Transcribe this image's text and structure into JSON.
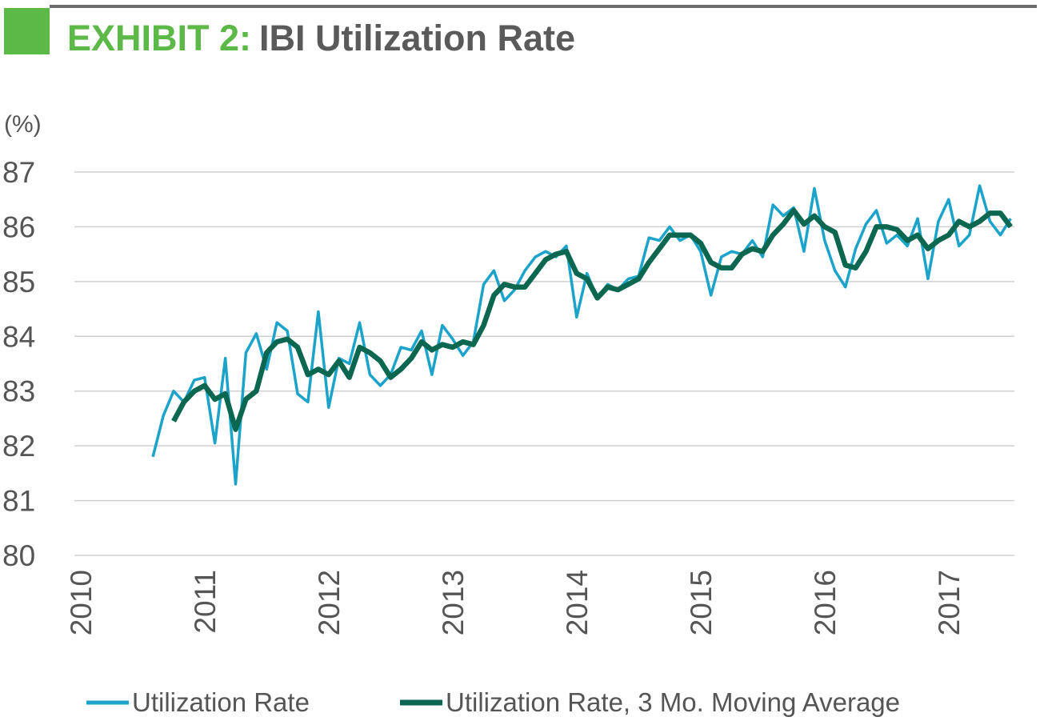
{
  "chart_data": {
    "type": "line",
    "title_prefix": "EXHIBIT 2:",
    "title": "IBI Utilization Rate",
    "y_label": "(%)",
    "x": [
      2010.583,
      2010.667,
      2010.75,
      2010.833,
      2010.917,
      2011,
      2011.083,
      2011.167,
      2011.25,
      2011.333,
      2011.417,
      2011.5,
      2011.583,
      2011.667,
      2011.75,
      2011.833,
      2011.917,
      2012,
      2012.083,
      2012.167,
      2012.25,
      2012.333,
      2012.417,
      2012.5,
      2012.583,
      2012.667,
      2012.75,
      2012.833,
      2012.917,
      2013,
      2013.083,
      2013.167,
      2013.25,
      2013.333,
      2013.417,
      2013.5,
      2013.583,
      2013.667,
      2013.75,
      2013.833,
      2013.917,
      2014,
      2014.083,
      2014.167,
      2014.25,
      2014.333,
      2014.417,
      2014.5,
      2014.583,
      2014.667,
      2014.75,
      2014.833,
      2014.917,
      2015,
      2015.083,
      2015.167,
      2015.25,
      2015.333,
      2015.417,
      2015.5,
      2015.583,
      2015.667,
      2015.75,
      2015.833,
      2015.917,
      2016,
      2016.083,
      2016.167,
      2016.25,
      2016.333,
      2016.417,
      2016.5,
      2016.583,
      2016.667,
      2016.75,
      2016.833,
      2016.917,
      2017,
      2017.083,
      2017.167,
      2017.25,
      2017.333,
      2017.417,
      2017.5
    ],
    "series": [
      {
        "name": "Utilization Rate",
        "color": "#1ba3c9",
        "width": 3.5,
        "values": [
          81.8,
          82.55,
          83.0,
          82.8,
          83.2,
          83.25,
          82.05,
          83.6,
          81.3,
          83.7,
          84.05,
          83.4,
          84.25,
          84.1,
          82.95,
          82.8,
          84.45,
          82.7,
          83.6,
          83.5,
          84.25,
          83.3,
          83.1,
          83.3,
          83.8,
          83.75,
          84.1,
          83.3,
          84.2,
          83.95,
          83.65,
          83.9,
          84.95,
          85.2,
          84.65,
          84.85,
          85.2,
          85.45,
          85.55,
          85.45,
          85.65,
          84.35,
          85.15,
          84.7,
          84.95,
          84.85,
          85.05,
          85.1,
          85.8,
          85.75,
          86.0,
          85.75,
          85.85,
          85.55,
          84.75,
          85.45,
          85.55,
          85.5,
          85.75,
          85.45,
          86.4,
          86.2,
          86.35,
          85.55,
          86.7,
          85.75,
          85.2,
          84.9,
          85.6,
          86.05,
          86.3,
          85.7,
          85.85,
          85.65,
          86.15,
          85.05,
          86.1,
          86.5,
          85.65,
          85.85,
          86.75,
          86.1,
          85.85,
          86.15
        ]
      },
      {
        "name": "Utilization Rate, 3 Mo. Moving Average",
        "color": "#0b6750",
        "width": 6.5,
        "values": [
          null,
          null,
          82.45,
          82.8,
          83.0,
          83.1,
          82.85,
          82.95,
          82.3,
          82.85,
          83.0,
          83.7,
          83.9,
          83.95,
          83.8,
          83.3,
          83.4,
          83.3,
          83.55,
          83.25,
          83.8,
          83.7,
          83.55,
          83.25,
          83.4,
          83.6,
          83.9,
          83.75,
          83.85,
          83.8,
          83.9,
          83.85,
          84.2,
          84.75,
          84.95,
          84.9,
          84.9,
          85.15,
          85.4,
          85.5,
          85.55,
          85.15,
          85.05,
          84.7,
          84.9,
          84.85,
          84.95,
          85.05,
          85.35,
          85.6,
          85.85,
          85.85,
          85.85,
          85.7,
          85.35,
          85.25,
          85.25,
          85.5,
          85.6,
          85.55,
          85.85,
          86.05,
          86.3,
          86.05,
          86.2,
          86.0,
          85.9,
          85.3,
          85.25,
          85.55,
          86.0,
          86.0,
          85.95,
          85.75,
          85.85,
          85.6,
          85.75,
          85.85,
          86.1,
          86.0,
          86.1,
          86.25,
          86.25,
          86.0
        ]
      }
    ],
    "xlim": [
      2009.95,
      2017.53
    ],
    "xticks": [
      2010,
      2011,
      2012,
      2013,
      2014,
      2015,
      2016,
      2017
    ],
    "ylim": [
      80,
      87
    ],
    "yticks": [
      80,
      81,
      82,
      83,
      84,
      85,
      86,
      87
    ],
    "grid": true,
    "legend": "bottom"
  }
}
